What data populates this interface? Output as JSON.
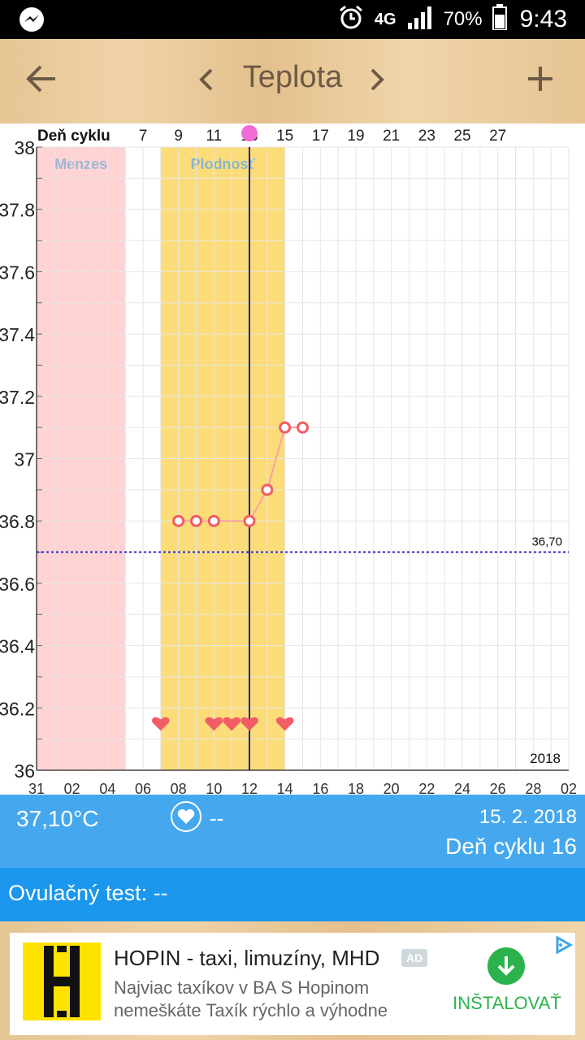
{
  "status_bar": {
    "network": "4G",
    "battery": "70%",
    "time": "9:43",
    "icons": [
      "messenger-icon",
      "alarm-icon",
      "signal-icon",
      "battery-icon"
    ]
  },
  "toolbar": {
    "title": "Teplota",
    "icons": [
      "back-arrow-icon",
      "chevron-left-icon",
      "chevron-right-icon",
      "plus-icon"
    ]
  },
  "chart_data": {
    "type": "line",
    "cycle_axis_label": "Deň cyklu",
    "cycle_ticks": [
      "7",
      "9",
      "11",
      "13",
      "15",
      "17",
      "19",
      "21",
      "23",
      "25",
      "27"
    ],
    "date_ticks": [
      "31",
      "02",
      "04",
      "06",
      "08",
      "10",
      "12",
      "14",
      "16",
      "18",
      "20",
      "22",
      "24",
      "26",
      "28",
      "02"
    ],
    "y_ticks": [
      "38",
      "37.8",
      "37.6",
      "37.4",
      "37.2",
      "37",
      "36.8",
      "36.6",
      "36.4",
      "36.2",
      "36"
    ],
    "ylim": [
      36,
      38
    ],
    "x_domain": [
      0,
      30
    ],
    "year": "2018",
    "bands": [
      {
        "label": "Menzes",
        "from": 0,
        "to": 5,
        "color": "#ffd3d3",
        "label_color": "#9db8d8"
      },
      {
        "label": "Plodnosť",
        "from": 7,
        "to": 14,
        "color": "#fbdc78",
        "label_color": "#8cb6c8"
      }
    ],
    "ovulation_day_x": 12,
    "coverline": {
      "value": 36.7,
      "label": "36,70"
    },
    "series": [
      {
        "points": [
          [
            8,
            36.8
          ],
          [
            9,
            36.8
          ],
          [
            10,
            36.8
          ],
          [
            12,
            36.8
          ],
          [
            13,
            36.9
          ],
          [
            14,
            37.1
          ],
          [
            15,
            37.1
          ]
        ]
      }
    ],
    "intercourse_days": [
      7,
      10,
      11,
      12,
      14
    ],
    "marker_color": "#f25c64",
    "line_color": "#f7a3a5"
  },
  "info": {
    "temperature": "37,10°C",
    "sex": "--",
    "date": "15. 2. 2018",
    "cycle_day": "Deň cyklu 16"
  },
  "ovulation": {
    "label": "Ovulačný test: --"
  },
  "ad": {
    "title": "HOPIN - taxi, limuzíny, MHD",
    "badge": "AD",
    "description": "Najviac taxíkov v BA S Hopinom nemeškáte Taxík rýchlo a výhodne",
    "install_label": "INŠTALOVAŤ",
    "logo_color": "#ffe300"
  }
}
